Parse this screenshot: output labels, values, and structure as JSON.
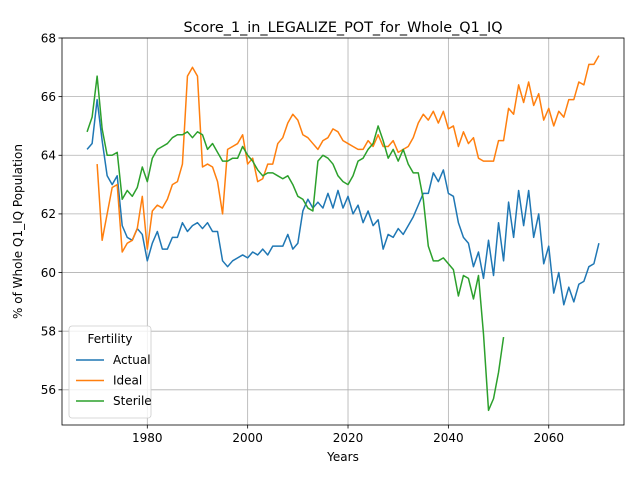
{
  "chart_data": {
    "type": "line",
    "title": "Score_1_in_LEGALIZE_POT_for_Whole_Q1_IQ",
    "xlabel": "Years",
    "ylabel": "% of Whole Q1_IQ Population",
    "xlim": [
      1963,
      2075
    ],
    "ylim": [
      54.8,
      68
    ],
    "xticks": [
      1980,
      2000,
      2020,
      2040,
      2060
    ],
    "yticks": [
      56,
      58,
      60,
      62,
      64,
      66,
      68
    ],
    "grid": true,
    "legend": {
      "title": "Fertility",
      "position": "bottom-left"
    },
    "series": [
      {
        "name": "Actual",
        "color": "#1f77b4",
        "x": [
          1968,
          1969,
          1970,
          1971,
          1972,
          1973,
          1974,
          1975,
          1976,
          1977,
          1978,
          1979,
          1980,
          1981,
          1982,
          1983,
          1984,
          1985,
          1986,
          1987,
          1988,
          1989,
          1990,
          1991,
          1992,
          1993,
          1994,
          1995,
          1996,
          1997,
          1998,
          1999,
          2000,
          2001,
          2002,
          2003,
          2004,
          2005,
          2006,
          2007,
          2008,
          2009,
          2010,
          2011,
          2012,
          2013,
          2014,
          2015,
          2016,
          2017,
          2018,
          2019,
          2020,
          2021,
          2022,
          2023,
          2024,
          2025,
          2026,
          2027,
          2028,
          2029,
          2030,
          2031,
          2032,
          2033,
          2034,
          2035,
          2036,
          2037,
          2038,
          2039,
          2040,
          2041,
          2042,
          2043,
          2044,
          2045,
          2046,
          2047,
          2048,
          2049,
          2050,
          2051,
          2052,
          2053,
          2054,
          2055,
          2056,
          2057,
          2058,
          2059,
          2060,
          2061,
          2062,
          2063,
          2064,
          2065,
          2066,
          2067,
          2068,
          2069,
          2070
        ],
        "y": [
          64.2,
          64.4,
          65.9,
          64.5,
          63.3,
          63.0,
          63.3,
          61.6,
          61.2,
          61.1,
          61.5,
          61.3,
          60.4,
          61.0,
          61.4,
          60.8,
          60.8,
          61.2,
          61.2,
          61.7,
          61.4,
          61.6,
          61.7,
          61.5,
          61.7,
          61.4,
          61.4,
          60.4,
          60.2,
          60.4,
          60.5,
          60.6,
          60.5,
          60.7,
          60.6,
          60.8,
          60.6,
          60.9,
          60.9,
          60.9,
          61.3,
          60.8,
          61.0,
          62.1,
          62.5,
          62.2,
          62.4,
          62.2,
          62.7,
          62.2,
          62.8,
          62.2,
          62.6,
          62.0,
          62.3,
          61.7,
          62.1,
          61.6,
          61.8,
          60.8,
          61.3,
          61.2,
          61.5,
          61.3,
          61.6,
          61.9,
          62.3,
          62.7,
          62.7,
          63.4,
          63.1,
          63.5,
          62.7,
          62.6,
          61.7,
          61.2,
          61.0,
          60.2,
          60.7,
          59.8,
          61.1,
          59.9,
          61.7,
          60.4,
          62.4,
          61.2,
          62.8,
          61.6,
          62.8,
          61.2,
          62.0,
          60.3,
          60.9,
          59.3,
          60.0,
          58.9,
          59.5,
          59.0,
          59.6,
          59.7,
          60.2,
          60.3,
          61.0
        ]
      },
      {
        "name": "Ideal",
        "color": "#ff7f0e",
        "x": [
          1970,
          1971,
          1972,
          1973,
          1974,
          1975,
          1976,
          1977,
          1978,
          1979,
          1980,
          1981,
          1982,
          1983,
          1984,
          1985,
          1986,
          1987,
          1988,
          1989,
          1990,
          1991,
          1992,
          1993,
          1994,
          1995,
          1996,
          1997,
          1998,
          1999,
          2000,
          2001,
          2002,
          2003,
          2004,
          2005,
          2006,
          2007,
          2008,
          2009,
          2010,
          2011,
          2012,
          2013,
          2014,
          2015,
          2016,
          2017,
          2018,
          2019,
          2020,
          2021,
          2022,
          2023,
          2024,
          2025,
          2026,
          2027,
          2028,
          2029,
          2030,
          2031,
          2032,
          2033,
          2034,
          2035,
          2036,
          2037,
          2038,
          2039,
          2040,
          2041,
          2042,
          2043,
          2044,
          2045,
          2046,
          2047,
          2048,
          2049,
          2050,
          2051,
          2052,
          2053,
          2054,
          2055,
          2056,
          2057,
          2058,
          2059,
          2060,
          2061,
          2062,
          2063,
          2064,
          2065,
          2066,
          2067,
          2068,
          2069,
          2070
        ],
        "y": [
          63.7,
          61.1,
          62.0,
          62.9,
          63.0,
          60.7,
          61.0,
          61.1,
          61.5,
          62.6,
          60.8,
          62.1,
          62.3,
          62.2,
          62.5,
          63.0,
          63.1,
          63.7,
          66.7,
          67.0,
          66.7,
          63.6,
          63.7,
          63.6,
          63.1,
          62.0,
          64.2,
          64.3,
          64.4,
          64.7,
          63.7,
          63.9,
          63.1,
          63.2,
          63.7,
          63.7,
          64.4,
          64.6,
          65.1,
          65.4,
          65.2,
          64.7,
          64.6,
          64.4,
          64.2,
          64.5,
          64.6,
          64.9,
          64.8,
          64.5,
          64.4,
          64.3,
          64.2,
          64.2,
          64.5,
          64.3,
          64.7,
          64.3,
          64.3,
          64.5,
          64.1,
          64.2,
          64.3,
          64.6,
          65.1,
          65.4,
          65.2,
          65.5,
          65.1,
          65.5,
          64.9,
          65.0,
          64.3,
          64.8,
          64.4,
          64.6,
          63.9,
          63.8,
          63.8,
          63.8,
          64.5,
          64.5,
          65.6,
          65.4,
          66.4,
          65.8,
          66.5,
          65.7,
          66.1,
          65.2,
          65.6,
          65.0,
          65.5,
          65.3,
          65.9,
          65.9,
          66.5,
          66.4,
          67.1,
          67.1,
          67.4
        ]
      },
      {
        "name": "Sterile",
        "color": "#2ca02c",
        "x": [
          1968,
          1969,
          1970,
          1971,
          1972,
          1973,
          1974,
          1975,
          1976,
          1977,
          1978,
          1979,
          1980,
          1981,
          1982,
          1983,
          1984,
          1985,
          1986,
          1987,
          1988,
          1989,
          1990,
          1991,
          1992,
          1993,
          1994,
          1995,
          1996,
          1997,
          1998,
          1999,
          2000,
          2001,
          2002,
          2003,
          2004,
          2005,
          2006,
          2007,
          2008,
          2009,
          2010,
          2011,
          2012,
          2013,
          2014,
          2015,
          2016,
          2017,
          2018,
          2019,
          2020,
          2021,
          2022,
          2023,
          2024,
          2025,
          2026,
          2027,
          2028,
          2029,
          2030,
          2031,
          2032,
          2033,
          2034,
          2035,
          2036,
          2037,
          2038,
          2039,
          2040,
          2041,
          2042,
          2043,
          2044,
          2045,
          2046,
          2047,
          2048,
          2049,
          2050,
          2051
        ],
        "y": [
          64.8,
          65.3,
          66.7,
          64.9,
          64.0,
          64.0,
          64.1,
          62.5,
          62.8,
          62.6,
          62.9,
          63.6,
          63.1,
          63.9,
          64.2,
          64.3,
          64.4,
          64.6,
          64.7,
          64.7,
          64.8,
          64.6,
          64.8,
          64.7,
          64.2,
          64.4,
          64.1,
          63.8,
          63.8,
          63.9,
          63.9,
          64.3,
          64.0,
          63.8,
          63.5,
          63.3,
          63.4,
          63.4,
          63.3,
          63.2,
          63.3,
          63.0,
          62.6,
          62.5,
          62.2,
          62.1,
          63.8,
          64.0,
          63.9,
          63.7,
          63.3,
          63.1,
          63.0,
          63.3,
          63.8,
          63.9,
          64.2,
          64.4,
          65.0,
          64.5,
          63.9,
          64.2,
          63.8,
          64.2,
          63.7,
          63.4,
          63.4,
          62.5,
          60.9,
          60.4,
          60.4,
          60.5,
          60.3,
          60.1,
          59.2,
          59.9,
          59.8,
          59.1,
          59.9,
          57.9,
          55.3,
          55.7,
          56.6,
          57.8
        ]
      }
    ]
  }
}
